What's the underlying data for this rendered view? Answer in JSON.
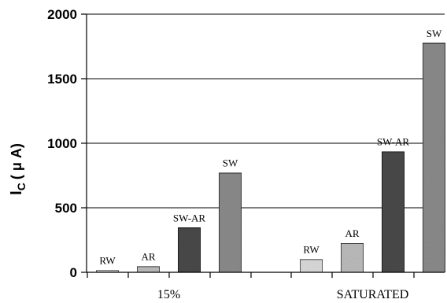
{
  "chart_data": {
    "type": "bar",
    "ylabel": {
      "main": "I",
      "sub": "C",
      "unit": "( μ A)"
    },
    "ylim": [
      0,
      2000
    ],
    "yticks": [
      "0",
      "500",
      "1000",
      "1500",
      "2000"
    ],
    "grid": true,
    "groups": [
      {
        "label": "15%",
        "bars": [
          {
            "label": "RW",
            "value": 15
          },
          {
            "label": "AR",
            "value": 45
          },
          {
            "label": "SW-AR",
            "value": 345
          },
          {
            "label": "SW",
            "value": 770
          }
        ]
      },
      {
        "label": "SATURATED",
        "bars": [
          {
            "label": "RW",
            "value": 100
          },
          {
            "label": "AR",
            "value": 225
          },
          {
            "label": "SW-AR",
            "value": 935
          },
          {
            "label": "SW",
            "value": 1775
          }
        ]
      }
    ],
    "colors": {
      "RW": "#dcdcdc",
      "AR": "#bdbdbd",
      "SW-AR": "#4a4a4a",
      "SW": "#8c8c8c"
    }
  }
}
